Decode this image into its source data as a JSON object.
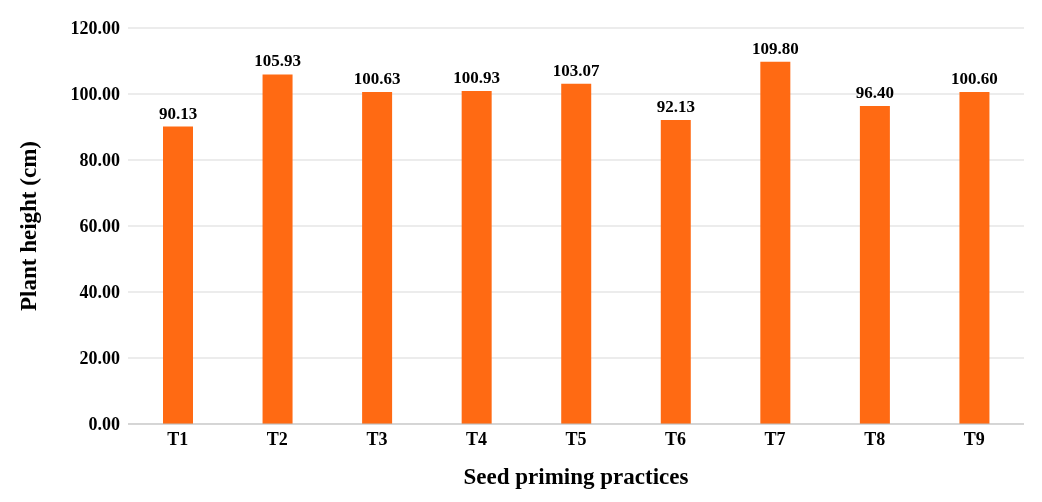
{
  "chart_data": {
    "type": "bar",
    "xlabel": "Seed priming practices",
    "ylabel": "Plant height (cm)",
    "categories": [
      "T1",
      "T2",
      "T3",
      "T4",
      "T5",
      "T6",
      "T7",
      "T8",
      "T9"
    ],
    "values": [
      90.13,
      105.93,
      100.63,
      100.93,
      103.07,
      92.13,
      109.8,
      96.4,
      100.6
    ],
    "value_labels": [
      "90.13",
      "105.93",
      "100.63",
      "100.93",
      "103.07",
      "92.13",
      "109.80",
      "96.40",
      "100.60"
    ],
    "color": "#ff6a13",
    "ylim": [
      0,
      120
    ],
    "yticks": [
      {
        "value": 0,
        "label": "0.00"
      },
      {
        "value": 20,
        "label": "20.00"
      },
      {
        "value": 40,
        "label": "40.00"
      },
      {
        "value": 60,
        "label": "60.00"
      },
      {
        "value": 80,
        "label": "80.00"
      },
      {
        "value": 100,
        "label": "100.00"
      },
      {
        "value": 120,
        "label": "120.00"
      }
    ],
    "grid": "y",
    "legend": false
  }
}
